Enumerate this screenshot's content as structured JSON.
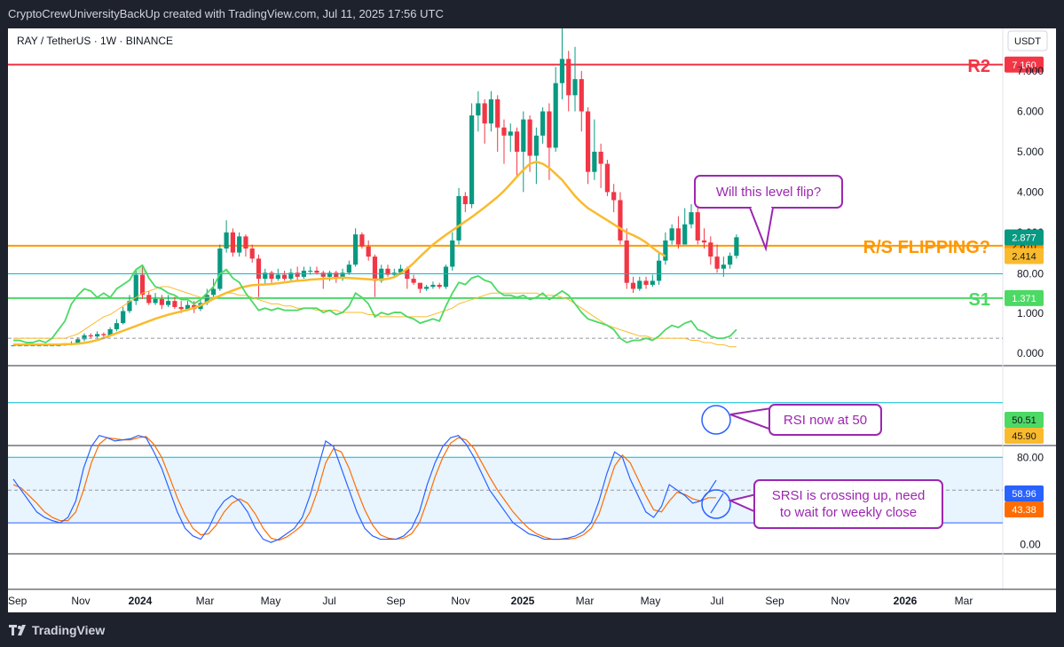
{
  "header": {
    "caption": "CryptoCrewUniversityBackUp created with TradingView.com, Jul 11, 2025 17:56 UTC"
  },
  "footer": {
    "brand": "TradingView"
  },
  "chart_data": {
    "type": "candlestick",
    "symbol": "RAY / TetherUS · 1W · BINANCE",
    "currency": "USDT",
    "price_axis": {
      "ticks": [
        "7.000",
        "6.000",
        "5.000",
        "4.000",
        "3.000",
        "1.000",
        "0.000"
      ]
    },
    "time_axis": {
      "labels": [
        "Sep",
        "Nov",
        "2024",
        "Mar",
        "May",
        "Jul",
        "Sep",
        "Nov",
        "2025",
        "Mar",
        "May",
        "Jul",
        "Sep",
        "Nov",
        "2026",
        "Mar"
      ],
      "bold": [
        "2024",
        "2025",
        "2026"
      ]
    },
    "levels": [
      {
        "name": "R2",
        "value": 7.16,
        "label": "7.160",
        "color": "#f23645"
      },
      {
        "name": "R/S FLIPPING?",
        "value": 2.67,
        "label": "2.670",
        "color": "#ff9800"
      },
      {
        "name": "S1",
        "value": 1.371,
        "label": "1.371",
        "color": "#4cd964"
      }
    ],
    "price_labels": [
      {
        "label": "2.877",
        "value": 2.877,
        "color": "#089981"
      },
      {
        "label": "2.414",
        "value": 2.414,
        "color": "#f9bb2d"
      }
    ],
    "ma": {
      "color": "#f9bb2d",
      "values": [
        0.22,
        0.22,
        0.22,
        0.22,
        0.22,
        0.22,
        0.22,
        0.22,
        0.23,
        0.23,
        0.24,
        0.26,
        0.29,
        0.33,
        0.38,
        0.44,
        0.5,
        0.56,
        0.62,
        0.68,
        0.74,
        0.8,
        0.86,
        0.91,
        0.96,
        1.0,
        1.04,
        1.08,
        1.13,
        1.19,
        1.27,
        1.35,
        1.43,
        1.5,
        1.56,
        1.62,
        1.66,
        1.69,
        1.7,
        1.71,
        1.72,
        1.74,
        1.76,
        1.78,
        1.8,
        1.81,
        1.83,
        1.84,
        1.85,
        1.86,
        1.87,
        1.88,
        1.87,
        1.86,
        1.85,
        1.84,
        1.83,
        1.83,
        1.85,
        1.89,
        1.98,
        2.1,
        2.24,
        2.4,
        2.55,
        2.7,
        2.82,
        2.94,
        3.05,
        3.16,
        3.27,
        3.38,
        3.5,
        3.62,
        3.75,
        3.88,
        4.03,
        4.2,
        4.38,
        4.55,
        4.7,
        4.75,
        4.7,
        4.6,
        4.45,
        4.3,
        4.1,
        3.9,
        3.74,
        3.6,
        3.5,
        3.4,
        3.3,
        3.2,
        3.1,
        3.0,
        2.93,
        2.85,
        2.75,
        2.62,
        2.5,
        2.41
      ]
    },
    "candles": [
      [
        0.2,
        0.2,
        0.19,
        0.21
      ],
      [
        0.2,
        0.2,
        0.19,
        0.21
      ],
      [
        0.2,
        0.2,
        0.19,
        0.21
      ],
      [
        0.2,
        0.2,
        0.19,
        0.21
      ],
      [
        0.2,
        0.2,
        0.19,
        0.21
      ],
      [
        0.2,
        0.2,
        0.19,
        0.21
      ],
      [
        0.2,
        0.2,
        0.19,
        0.21
      ],
      [
        0.2,
        0.2,
        0.19,
        0.21
      ],
      [
        0.2,
        0.22,
        0.19,
        0.24
      ],
      [
        0.22,
        0.25,
        0.2,
        0.3
      ],
      [
        0.25,
        0.35,
        0.22,
        0.4
      ],
      [
        0.35,
        0.45,
        0.3,
        0.5
      ],
      [
        0.45,
        0.42,
        0.38,
        0.5
      ],
      [
        0.42,
        0.48,
        0.38,
        0.55
      ],
      [
        0.48,
        0.45,
        0.4,
        0.52
      ],
      [
        0.45,
        0.6,
        0.42,
        0.65
      ],
      [
        0.6,
        0.75,
        0.55,
        0.85
      ],
      [
        0.75,
        1.05,
        0.72,
        1.15
      ],
      [
        1.05,
        1.3,
        1.0,
        1.45
      ],
      [
        1.3,
        1.95,
        1.2,
        2.05
      ],
      [
        1.95,
        1.45,
        1.35,
        2.2
      ],
      [
        1.45,
        1.25,
        1.2,
        1.55
      ],
      [
        1.25,
        1.35,
        1.2,
        1.5
      ],
      [
        1.35,
        1.2,
        1.1,
        1.45
      ],
      [
        1.2,
        1.3,
        1.15,
        1.45
      ],
      [
        1.3,
        1.15,
        1.1,
        1.4
      ],
      [
        1.15,
        1.1,
        1.0,
        1.3
      ],
      [
        1.1,
        1.2,
        1.05,
        1.3
      ],
      [
        1.2,
        1.1,
        1.0,
        1.3
      ],
      [
        1.1,
        1.25,
        1.05,
        1.35
      ],
      [
        1.25,
        1.45,
        1.2,
        1.6
      ],
      [
        1.45,
        1.6,
        1.4,
        1.85
      ],
      [
        1.6,
        2.6,
        1.55,
        2.7
      ],
      [
        2.6,
        3.0,
        2.5,
        3.3
      ],
      [
        3.0,
        2.5,
        2.4,
        3.1
      ],
      [
        2.5,
        2.9,
        2.4,
        3.0
      ],
      [
        2.9,
        2.6,
        2.4,
        2.95
      ],
      [
        2.6,
        2.35,
        2.25,
        2.7
      ],
      [
        2.35,
        1.85,
        1.4,
        2.45
      ],
      [
        1.85,
        2.0,
        1.7,
        2.1
      ],
      [
        2.0,
        1.85,
        1.75,
        2.05
      ],
      [
        1.85,
        1.95,
        1.8,
        2.1
      ],
      [
        1.95,
        1.85,
        1.8,
        2.05
      ],
      [
        1.85,
        2.0,
        1.8,
        2.1
      ],
      [
        2.0,
        1.9,
        1.8,
        2.15
      ],
      [
        1.9,
        2.05,
        1.85,
        2.15
      ],
      [
        2.05,
        2.05,
        1.95,
        2.15
      ],
      [
        2.05,
        2.0,
        1.95,
        2.15
      ],
      [
        2.0,
        1.9,
        1.6,
        2.05
      ],
      [
        1.9,
        2.0,
        1.8,
        2.05
      ],
      [
        2.0,
        1.85,
        1.75,
        2.05
      ],
      [
        1.85,
        2.0,
        1.8,
        2.1
      ],
      [
        2.0,
        2.2,
        1.95,
        2.3
      ],
      [
        2.2,
        2.95,
        2.15,
        3.1
      ],
      [
        2.95,
        2.65,
        2.6,
        3.0
      ],
      [
        2.65,
        2.4,
        2.3,
        2.8
      ],
      [
        2.4,
        1.8,
        1.4,
        2.45
      ],
      [
        1.8,
        2.1,
        1.75,
        2.2
      ],
      [
        2.1,
        1.95,
        1.9,
        2.2
      ],
      [
        1.95,
        2.0,
        1.9,
        2.1
      ],
      [
        2.0,
        2.1,
        1.95,
        2.2
      ],
      [
        2.1,
        1.85,
        1.6,
        2.15
      ],
      [
        1.85,
        1.75,
        1.7,
        1.95
      ],
      [
        1.75,
        1.6,
        1.5,
        1.75
      ],
      [
        1.6,
        1.65,
        1.55,
        1.7
      ],
      [
        1.65,
        1.7,
        1.6,
        1.78
      ],
      [
        1.7,
        1.65,
        1.6,
        1.75
      ],
      [
        1.65,
        2.15,
        1.6,
        2.2
      ],
      [
        2.15,
        2.8,
        2.05,
        3.0
      ],
      [
        2.8,
        3.9,
        2.7,
        4.1
      ],
      [
        3.9,
        3.7,
        3.5,
        4.0
      ],
      [
        3.7,
        5.9,
        3.6,
        6.2
      ],
      [
        5.9,
        6.2,
        5.5,
        6.5
      ],
      [
        6.2,
        5.7,
        5.2,
        6.3
      ],
      [
        5.7,
        6.3,
        5.5,
        6.5
      ],
      [
        6.3,
        5.6,
        5.0,
        6.4
      ],
      [
        5.6,
        5.4,
        4.7,
        5.8
      ],
      [
        5.4,
        5.5,
        5.0,
        5.7
      ],
      [
        5.5,
        5.0,
        4.4,
        5.6
      ],
      [
        5.0,
        5.8,
        4.0,
        6.0
      ],
      [
        5.8,
        4.9,
        4.5,
        5.9
      ],
      [
        4.9,
        5.4,
        4.2,
        5.6
      ],
      [
        5.4,
        6.0,
        5.2,
        6.1
      ],
      [
        6.0,
        5.1,
        4.3,
        6.2
      ],
      [
        5.1,
        6.7,
        5.0,
        7.1
      ],
      [
        6.7,
        7.3,
        6.3,
        8.2
      ],
      [
        7.3,
        6.4,
        6.0,
        7.5
      ],
      [
        6.4,
        6.8,
        6.0,
        7.6
      ],
      [
        6.8,
        6.0,
        5.5,
        7.0
      ],
      [
        6.0,
        4.5,
        4.2,
        6.1
      ],
      [
        4.5,
        5.0,
        4.3,
        5.8
      ],
      [
        5.0,
        4.7,
        4.1,
        5.2
      ],
      [
        4.7,
        4.0,
        3.9,
        4.8
      ],
      [
        4.0,
        3.8,
        3.5,
        4.2
      ],
      [
        3.8,
        2.8,
        2.7,
        4.0
      ],
      [
        2.8,
        1.75,
        1.6,
        3.1
      ],
      [
        1.75,
        1.6,
        1.5,
        1.9
      ],
      [
        1.6,
        1.8,
        1.55,
        1.9
      ],
      [
        1.8,
        1.7,
        1.6,
        1.9
      ],
      [
        1.7,
        1.8,
        1.65,
        1.95
      ],
      [
        1.8,
        2.3,
        1.7,
        2.5
      ],
      [
        2.3,
        2.8,
        2.2,
        3.0
      ],
      [
        2.8,
        3.1,
        2.7,
        3.2
      ],
      [
        3.1,
        2.7,
        2.6,
        3.4
      ],
      [
        2.7,
        3.2,
        2.7,
        3.6
      ],
      [
        3.2,
        3.5,
        3.1,
        3.7
      ],
      [
        3.5,
        2.8,
        2.7,
        3.8
      ],
      [
        2.8,
        2.75,
        2.6,
        3.1
      ],
      [
        2.75,
        2.4,
        2.2,
        2.9
      ],
      [
        2.4,
        2.1,
        2.0,
        2.7
      ],
      [
        2.1,
        2.2,
        1.9,
        2.4
      ],
      [
        2.2,
        2.42,
        2.1,
        2.5
      ],
      [
        2.42,
        2.88,
        2.35,
        2.95
      ]
    ],
    "rsi": {
      "ticks": [
        "80.00"
      ],
      "labels": [
        {
          "label": "50.51",
          "color": "#4cd964"
        },
        {
          "label": "45.90",
          "color": "#f9bb2d"
        }
      ],
      "values": [
        49,
        49,
        48,
        48,
        49,
        48,
        50,
        54,
        58,
        66,
        70,
        73,
        72,
        69,
        71,
        69,
        73,
        75,
        77,
        82,
        84,
        78,
        74,
        73,
        71,
        70,
        68,
        68,
        66,
        68,
        71,
        74,
        80,
        82,
        78,
        76,
        71,
        67,
        63,
        64,
        63,
        64,
        63,
        63,
        63,
        64,
        64,
        64,
        62,
        63,
        61,
        62,
        65,
        71,
        69,
        66,
        60,
        62,
        61,
        62,
        62,
        60,
        59,
        57,
        58,
        59,
        58,
        65,
        71,
        76,
        75,
        78,
        79,
        77,
        76,
        72,
        70,
        70,
        69,
        70,
        68,
        69,
        71,
        68,
        70,
        72,
        70,
        66,
        62,
        59,
        58,
        57,
        56,
        54,
        50,
        48,
        49,
        49,
        50,
        49,
        51,
        54,
        56,
        55,
        57,
        58,
        54,
        53,
        51,
        50,
        50,
        51,
        54
      ],
      "signal": [
        50,
        50,
        50,
        50,
        50,
        50,
        50,
        50,
        50,
        51,
        52,
        54,
        56,
        58,
        60,
        61,
        63,
        65,
        67,
        69,
        71,
        72,
        73,
        74,
        74,
        73,
        72,
        71,
        70,
        69,
        69,
        69,
        70,
        71,
        71,
        70,
        70,
        69,
        68,
        67,
        66,
        66,
        65,
        65,
        64,
        64,
        64,
        63,
        63,
        63,
        63,
        62,
        62,
        62,
        62,
        61,
        61,
        60,
        60,
        60,
        60,
        60,
        60,
        60,
        60,
        61,
        62,
        63,
        64,
        66,
        67,
        68,
        69,
        70,
        71,
        71,
        71,
        71,
        71,
        71,
        71,
        71,
        70,
        70,
        70,
        69,
        68,
        66,
        64,
        62,
        60,
        58,
        56,
        55,
        54,
        53,
        52,
        51,
        51,
        50,
        50,
        50,
        50,
        50,
        50,
        49,
        49,
        48,
        48,
        47,
        47,
        46,
        46
      ]
    },
    "stoch_rsi": {
      "ticks": [
        "80.00",
        "0.00"
      ],
      "labels": [
        {
          "label": "58.96",
          "color": "#2962ff"
        },
        {
          "label": "43.38",
          "color": "#ff6d00"
        }
      ],
      "k": [
        60,
        50,
        40,
        30,
        25,
        22,
        20,
        25,
        40,
        70,
        90,
        100,
        98,
        95,
        96,
        97,
        100,
        98,
        85,
        70,
        50,
        30,
        15,
        8,
        5,
        15,
        30,
        40,
        45,
        40,
        30,
        15,
        5,
        2,
        5,
        10,
        15,
        25,
        45,
        70,
        95,
        90,
        70,
        50,
        30,
        15,
        8,
        5,
        5,
        5,
        8,
        15,
        30,
        55,
        75,
        90,
        98,
        100,
        92,
        80,
        65,
        50,
        40,
        30,
        20,
        15,
        10,
        8,
        5,
        5,
        5,
        6,
        8,
        12,
        20,
        40,
        65,
        85,
        80,
        60,
        45,
        30,
        25,
        35,
        55,
        50,
        45,
        38,
        40,
        48,
        59
      ],
      "d": [
        55,
        52,
        45,
        38,
        30,
        25,
        22,
        22,
        30,
        50,
        75,
        92,
        98,
        97,
        96,
        96,
        98,
        99,
        92,
        80,
        62,
        43,
        27,
        15,
        9,
        10,
        18,
        30,
        38,
        42,
        38,
        28,
        15,
        6,
        4,
        7,
        12,
        18,
        30,
        50,
        75,
        88,
        85,
        70,
        50,
        32,
        18,
        9,
        6,
        5,
        6,
        10,
        20,
        40,
        62,
        80,
        93,
        98,
        96,
        88,
        75,
        62,
        50,
        40,
        30,
        22,
        15,
        10,
        7,
        5,
        5,
        5,
        6,
        9,
        15,
        28,
        50,
        72,
        82,
        75,
        60,
        45,
        32,
        30,
        40,
        48,
        46,
        42,
        40,
        43,
        43
      ]
    },
    "annotations": [
      {
        "text": "Will this level flip?"
      },
      {
        "text": "RSI now at 50"
      },
      {
        "text": "SRSI is crossing up, need to wait for weekly close"
      }
    ]
  }
}
